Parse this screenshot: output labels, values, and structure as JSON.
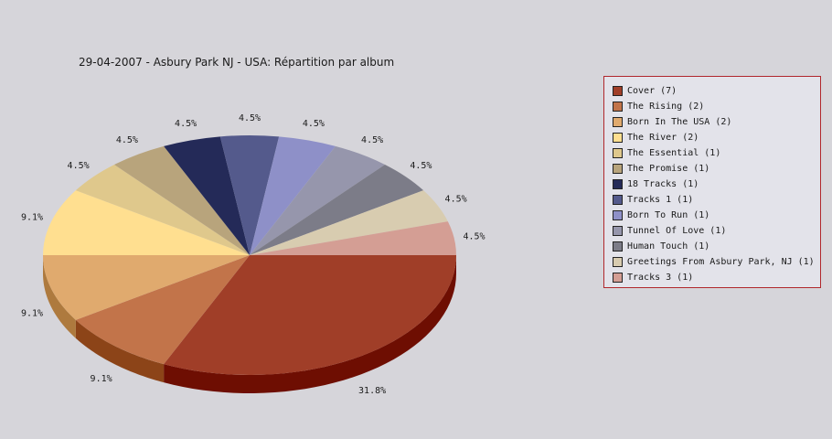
{
  "chart_data": {
    "type": "pie",
    "title": "29-04-2007 - Asbury Park NJ - USA:  Répartition par album",
    "slices": [
      {
        "label": "Cover (7)",
        "value": 7,
        "pct_label": "31.8%",
        "color": "#a03e28",
        "side_color": "#6e0e02"
      },
      {
        "label": "The Rising (2)",
        "value": 2,
        "pct_label": "9.1%",
        "color": "#c2744a",
        "side_color": "#8c4418"
      },
      {
        "label": "Born In The USA (2)",
        "value": 2,
        "pct_label": "9.1%",
        "color": "#e0aa6e",
        "side_color": "#ae7a3e"
      },
      {
        "label": "The River (2)",
        "value": 2,
        "pct_label": "9.1%",
        "color": "#ffdf90",
        "side_color": "#cfaf60"
      },
      {
        "label": "The Essential (1)",
        "value": 1,
        "pct_label": "4.5%",
        "color": "#dfc88c",
        "side_color": "#af985c"
      },
      {
        "label": "The Promise (1)",
        "value": 1,
        "pct_label": "4.5%",
        "color": "#b8a47c",
        "side_color": "#88744c"
      },
      {
        "label": "18 Tracks (1)",
        "value": 1,
        "pct_label": "4.5%",
        "color": "#242a58",
        "side_color": "#101430"
      },
      {
        "label": "Tracks 1 (1)",
        "value": 1,
        "pct_label": "4.5%",
        "color": "#545a8c",
        "side_color": "#2a2e5c"
      },
      {
        "label": "Born To Run (1)",
        "value": 1,
        "pct_label": "4.5%",
        "color": "#8e90c8",
        "side_color": "#5e6098"
      },
      {
        "label": "Tunnel Of Love (1)",
        "value": 1,
        "pct_label": "4.5%",
        "color": "#9696ac",
        "side_color": "#66667c"
      },
      {
        "label": "Human Touch (1)",
        "value": 1,
        "pct_label": "4.5%",
        "color": "#7c7c88",
        "side_color": "#4c4c58"
      },
      {
        "label": "Greetings From Asbury Park, NJ (1)",
        "value": 1,
        "pct_label": "4.5%",
        "color": "#d8ccb0",
        "side_color": "#a89c80"
      },
      {
        "label": "Tracks 3 (1)",
        "value": 1,
        "pct_label": "4.5%",
        "color": "#d49e94",
        "side_color": "#a46e64"
      }
    ],
    "legend_position": "right",
    "legend_border_color": "#b0272c",
    "background_color": "#d6d5da"
  }
}
